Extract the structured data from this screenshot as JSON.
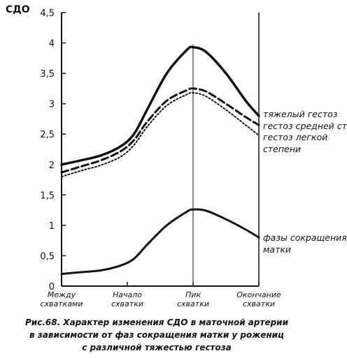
{
  "chart_data": {
    "type": "line",
    "ylabel": "СДО",
    "ylim": [
      0,
      4.5
    ],
    "yticks": [
      "0",
      "0,5",
      "1",
      "1,5",
      "2",
      "2,5",
      "3",
      "3,5",
      "4",
      "4,5"
    ],
    "x_range": [
      0,
      3
    ],
    "categories": [
      {
        "x": 0,
        "lines": [
          "Между",
          "схватками"
        ]
      },
      {
        "x": 1,
        "lines": [
          "Начало",
          "схватки"
        ]
      },
      {
        "x": 2,
        "lines": [
          "Пик",
          "схватки"
        ]
      },
      {
        "x": 3,
        "lines": [
          "Окончание",
          "схватки"
        ]
      }
    ],
    "series": [
      {
        "name": "тяжелый гестоз",
        "style": "solid-thick",
        "x": [
          0,
          0.3,
          0.6,
          0.9,
          1.1,
          1.3,
          1.6,
          1.9,
          2.0,
          2.2,
          2.5,
          2.8,
          3.0
        ],
        "y": [
          2.0,
          2.07,
          2.15,
          2.3,
          2.5,
          2.9,
          3.5,
          3.88,
          3.93,
          3.85,
          3.5,
          3.05,
          2.8
        ]
      },
      {
        "name": "гестоз средней ст.",
        "style": "dashed",
        "x": [
          0,
          0.3,
          0.6,
          0.9,
          1.1,
          1.3,
          1.6,
          1.9,
          2.0,
          2.2,
          2.5,
          2.8,
          3.0
        ],
        "y": [
          1.87,
          1.97,
          2.07,
          2.22,
          2.4,
          2.7,
          3.05,
          3.22,
          3.25,
          3.2,
          3.0,
          2.78,
          2.65
        ]
      },
      {
        "name": "гестоз легкой степени",
        "style": "dotted",
        "x": [
          0,
          0.3,
          0.6,
          0.9,
          1.1,
          1.3,
          1.6,
          1.9,
          2.0,
          2.2,
          2.5,
          2.8,
          3.0
        ],
        "y": [
          1.8,
          1.9,
          1.99,
          2.13,
          2.32,
          2.62,
          2.97,
          3.15,
          3.18,
          3.12,
          2.9,
          2.65,
          2.48
        ]
      },
      {
        "name": "фазы сокращения матки",
        "style": "solid-medium",
        "x": [
          0,
          0.3,
          0.6,
          0.9,
          1.1,
          1.3,
          1.6,
          1.9,
          2.0,
          2.2,
          2.5,
          2.8,
          3.0
        ],
        "y": [
          0.2,
          0.23,
          0.26,
          0.34,
          0.45,
          0.68,
          1.0,
          1.22,
          1.26,
          1.24,
          1.1,
          0.93,
          0.8
        ]
      }
    ],
    "legend": [
      {
        "series": 0,
        "lines": [
          "тяжелый гестоз"
        ]
      },
      {
        "series": 1,
        "lines": [
          "гестоз средней ст."
        ]
      },
      {
        "series": 2,
        "lines": [
          "гестоз легкой",
          "степени"
        ]
      },
      {
        "series": 3,
        "lines": [
          "фазы сокращения",
          "матки"
        ]
      }
    ],
    "vertical_markers_x": [
      1,
      2
    ]
  },
  "caption": {
    "lines": [
      "Рис.68. Характер изменения СДО в маточной артерии",
      "в зависимости от фаз сокращения матки у рожениц",
      "с различной тяжестью гестоза"
    ]
  }
}
